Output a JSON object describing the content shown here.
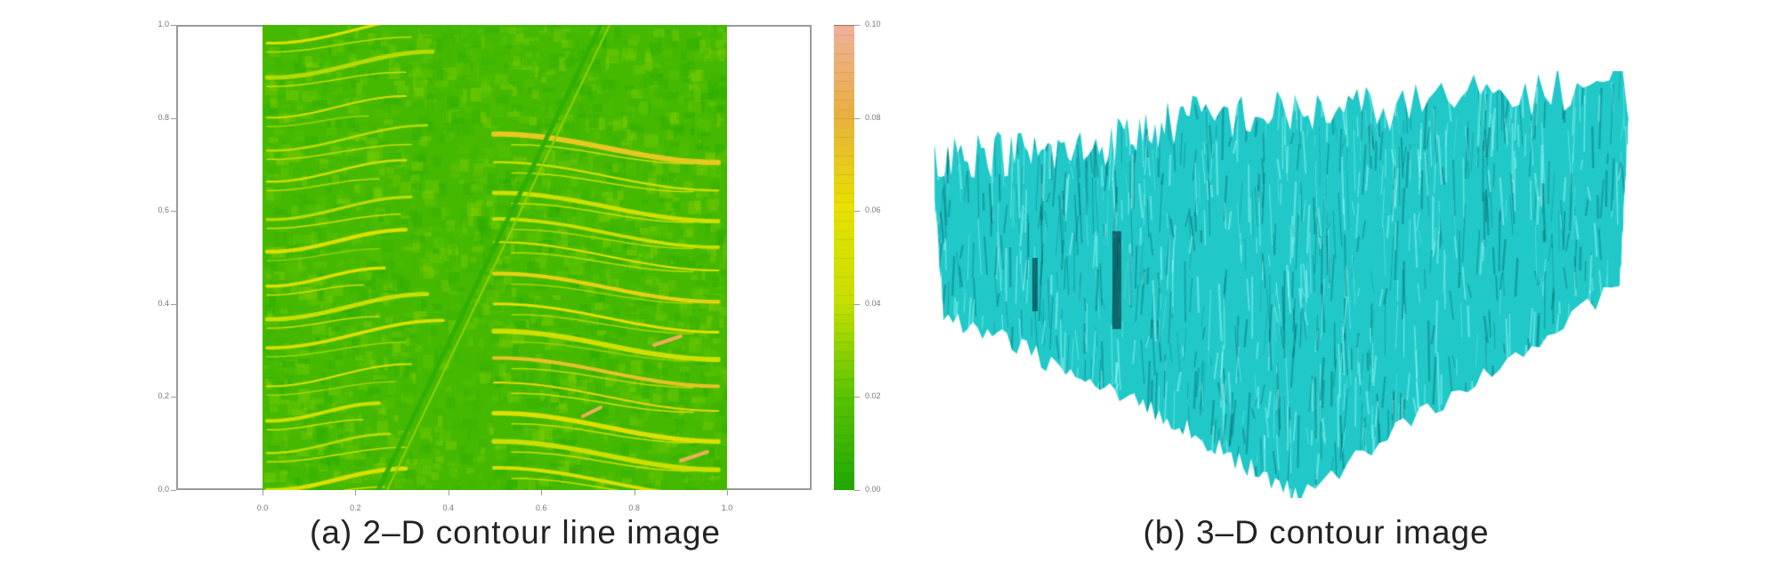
{
  "chart_data": [
    {
      "type": "heatmap",
      "caption": "(a) 2–D contour line image",
      "x_ticks": [
        "0.0",
        "0.2",
        "0.4",
        "0.6",
        "0.8",
        "1.0"
      ],
      "y_ticks": [
        "0.0",
        "0.2",
        "0.4",
        "0.6",
        "0.8",
        "1.0"
      ],
      "xlim": [
        0,
        1
      ],
      "ylim": [
        0,
        1
      ],
      "colorbar": {
        "ticks": [
          "0.00",
          "0.02",
          "0.04",
          "0.06",
          "0.08",
          "0.10"
        ],
        "range": [
          0,
          0.1
        ],
        "colors": [
          "#22a800",
          "#5cc400",
          "#c8e000",
          "#e8e000",
          "#e8b040",
          "#f0b0a0"
        ]
      }
    },
    {
      "type": "surface-3d",
      "caption": "(b) 3–D contour image",
      "color": "#20c8c8"
    }
  ]
}
